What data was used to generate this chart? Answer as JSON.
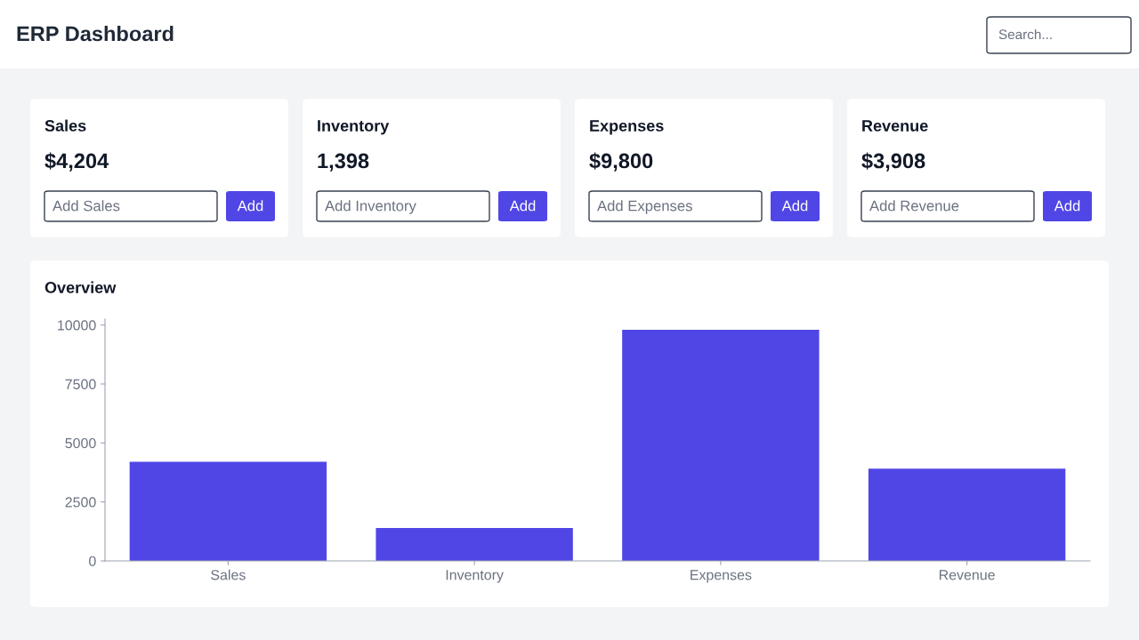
{
  "chart_data": [
    {
      "type": "other",
      "title": "ERP Dashboard",
      "annotations": [
        "Search...",
        "Sales",
        "$4,204",
        "Add Sales",
        "Add",
        "Inventory",
        "1,398",
        "Add Inventory",
        "Add",
        "Expenses",
        "$9,800",
        "Add Expenses",
        "Add",
        "Revenue",
        "$3,908",
        "Add Revenue",
        "Add"
      ]
    },
    {
      "type": "bar",
      "title": "Overview",
      "categories": [
        "Sales",
        "Inventory",
        "Expenses",
        "Revenue"
      ],
      "values": [
        4204,
        1398,
        9800,
        3908
      ],
      "color": "#4f46e5",
      "ylim": [
        0,
        10250
      ],
      "yticks": [
        0,
        2500,
        5000,
        7500,
        10000
      ]
    }
  ]
}
